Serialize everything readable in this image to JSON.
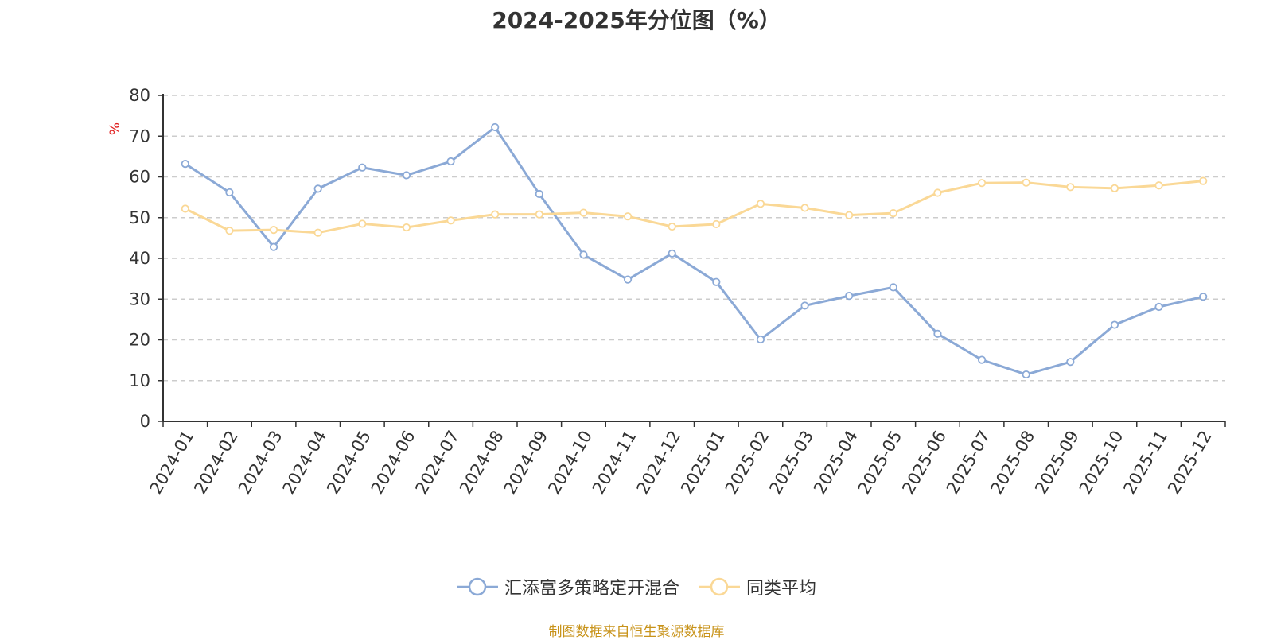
{
  "chart_data": {
    "type": "line",
    "title": "2024-2025年分位图（%）",
    "ylabel": "%",
    "xlabel": "",
    "ylim": [
      0,
      80
    ],
    "yticks": [
      "0",
      "10",
      "20",
      "30",
      "40",
      "50",
      "60",
      "70",
      "80"
    ],
    "grid": true,
    "legend_position": "bottom",
    "categories": [
      "2024-01",
      "2024-02",
      "2024-03",
      "2024-04",
      "2024-05",
      "2024-06",
      "2024-07",
      "2024-08",
      "2024-09",
      "2024-10",
      "2024-11",
      "2024-12",
      "2025-01",
      "2025-02",
      "2025-03",
      "2025-04",
      "2025-05",
      "2025-06",
      "2025-07",
      "2025-08",
      "2025-09",
      "2025-10",
      "2025-11",
      "2025-12"
    ],
    "series": [
      {
        "name": "汇添富多策略定开混合",
        "color": "#8ba9d6",
        "values": [
          63.2,
          56.2,
          42.8,
          57.1,
          62.3,
          60.4,
          63.8,
          72.2,
          55.8,
          40.9,
          34.8,
          41.2,
          34.2,
          20.1,
          28.4,
          30.8,
          32.9,
          21.5,
          15.1,
          11.5,
          14.6,
          23.7,
          28.1,
          30.6
        ]
      },
      {
        "name": "同类平均",
        "color": "#fad896",
        "values": [
          52.2,
          46.8,
          47.0,
          46.3,
          48.5,
          47.6,
          49.3,
          50.8,
          50.8,
          51.2,
          50.3,
          47.8,
          48.4,
          53.4,
          52.4,
          50.6,
          51.1,
          56.1,
          58.5,
          58.6,
          57.5,
          57.2,
          57.9,
          59.0
        ]
      }
    ],
    "source": "制图数据来自恒生聚源数据库",
    "source_color": "#c8931a",
    "ylabel_color": "#e01c1c"
  }
}
